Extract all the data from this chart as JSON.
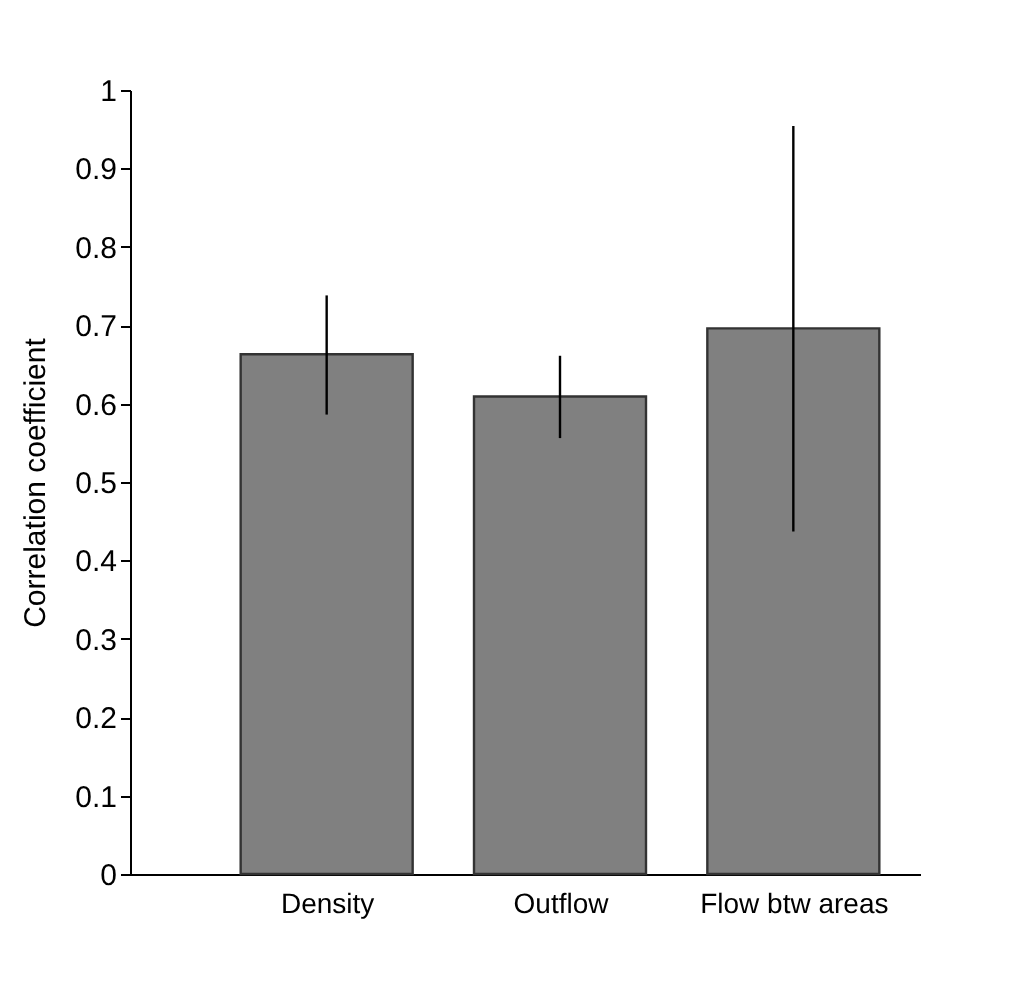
{
  "chart_data": {
    "type": "bar",
    "ylabel": "Correlation coefficient",
    "categories": [
      "Density",
      "Outflow",
      "Flow btw areas"
    ],
    "values": [
      0.663,
      0.609,
      0.696
    ],
    "errors": [
      [
        0.586,
        0.738
      ],
      [
        0.556,
        0.661
      ],
      [
        0.437,
        0.954
      ]
    ],
    "color": "#808080",
    "ylim": [
      0,
      1
    ],
    "yticks": [
      0,
      0.1,
      0.2,
      0.3,
      0.4,
      0.5,
      0.6,
      0.7,
      0.8,
      0.9,
      1
    ],
    "grid": false
  }
}
